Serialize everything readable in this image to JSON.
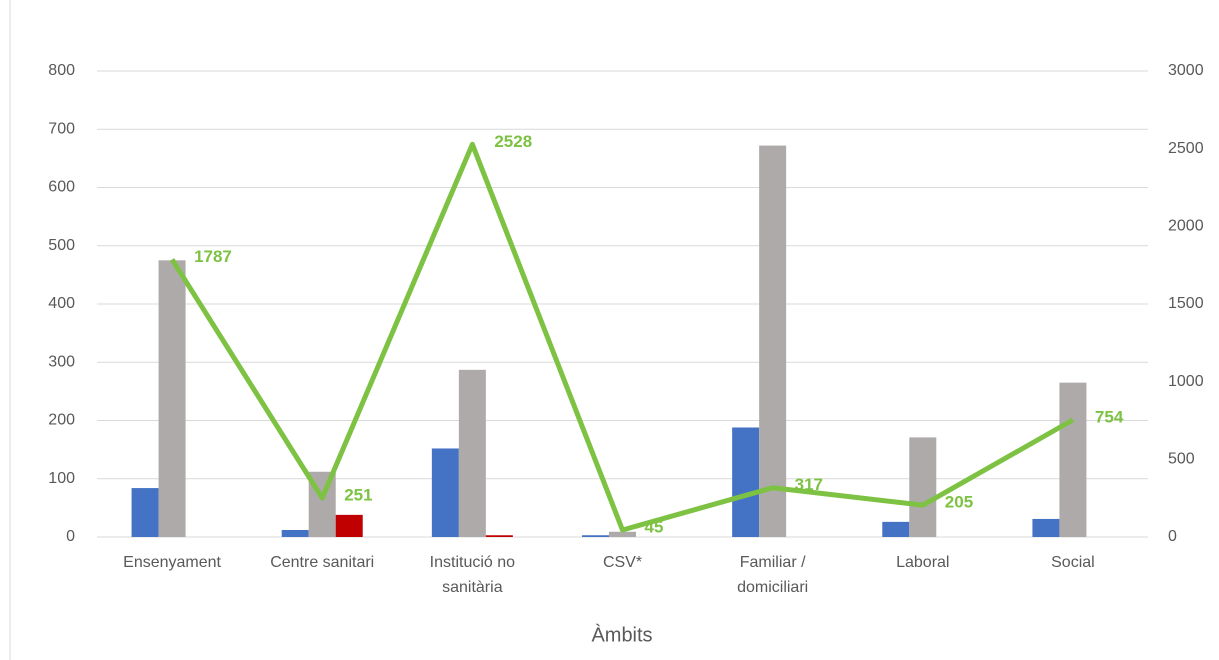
{
  "chart_data": {
    "type": "bar_line",
    "x_label": "Àmbits",
    "categories": [
      [
        "Ensenyament"
      ],
      [
        "Centre sanitari"
      ],
      [
        "Institució no",
        "sanitària"
      ],
      [
        "CSV*"
      ],
      [
        "Familiar /",
        "domiciliari"
      ],
      [
        "Laboral"
      ],
      [
        "Social"
      ]
    ],
    "series": [
      {
        "color": "#4472c4",
        "values": [
          84,
          12,
          152,
          3,
          188,
          26,
          31
        ]
      },
      {
        "color": "#aeaaaa",
        "values": [
          475,
          112,
          287,
          9,
          672,
          171,
          265
        ]
      },
      {
        "color": "#c00000",
        "values": [
          0,
          38,
          3,
          0,
          0,
          0,
          0
        ]
      },
      {
        "color": "#7dc242",
        "axis": "y2",
        "type": "line",
        "values": [
          1787,
          251,
          2528,
          45,
          317,
          205,
          754
        ],
        "value_labels": [
          "1787",
          "251",
          "2528",
          "45",
          "317",
          "205",
          "754"
        ]
      }
    ],
    "ylim": [
      0,
      800
    ],
    "yticks": [
      0,
      100,
      200,
      300,
      400,
      500,
      600,
      700,
      800
    ],
    "y2lim": [
      0,
      3000
    ],
    "y2ticks": [
      0,
      500,
      1000,
      1500,
      2000,
      2500,
      3000
    ],
    "grid": true
  }
}
